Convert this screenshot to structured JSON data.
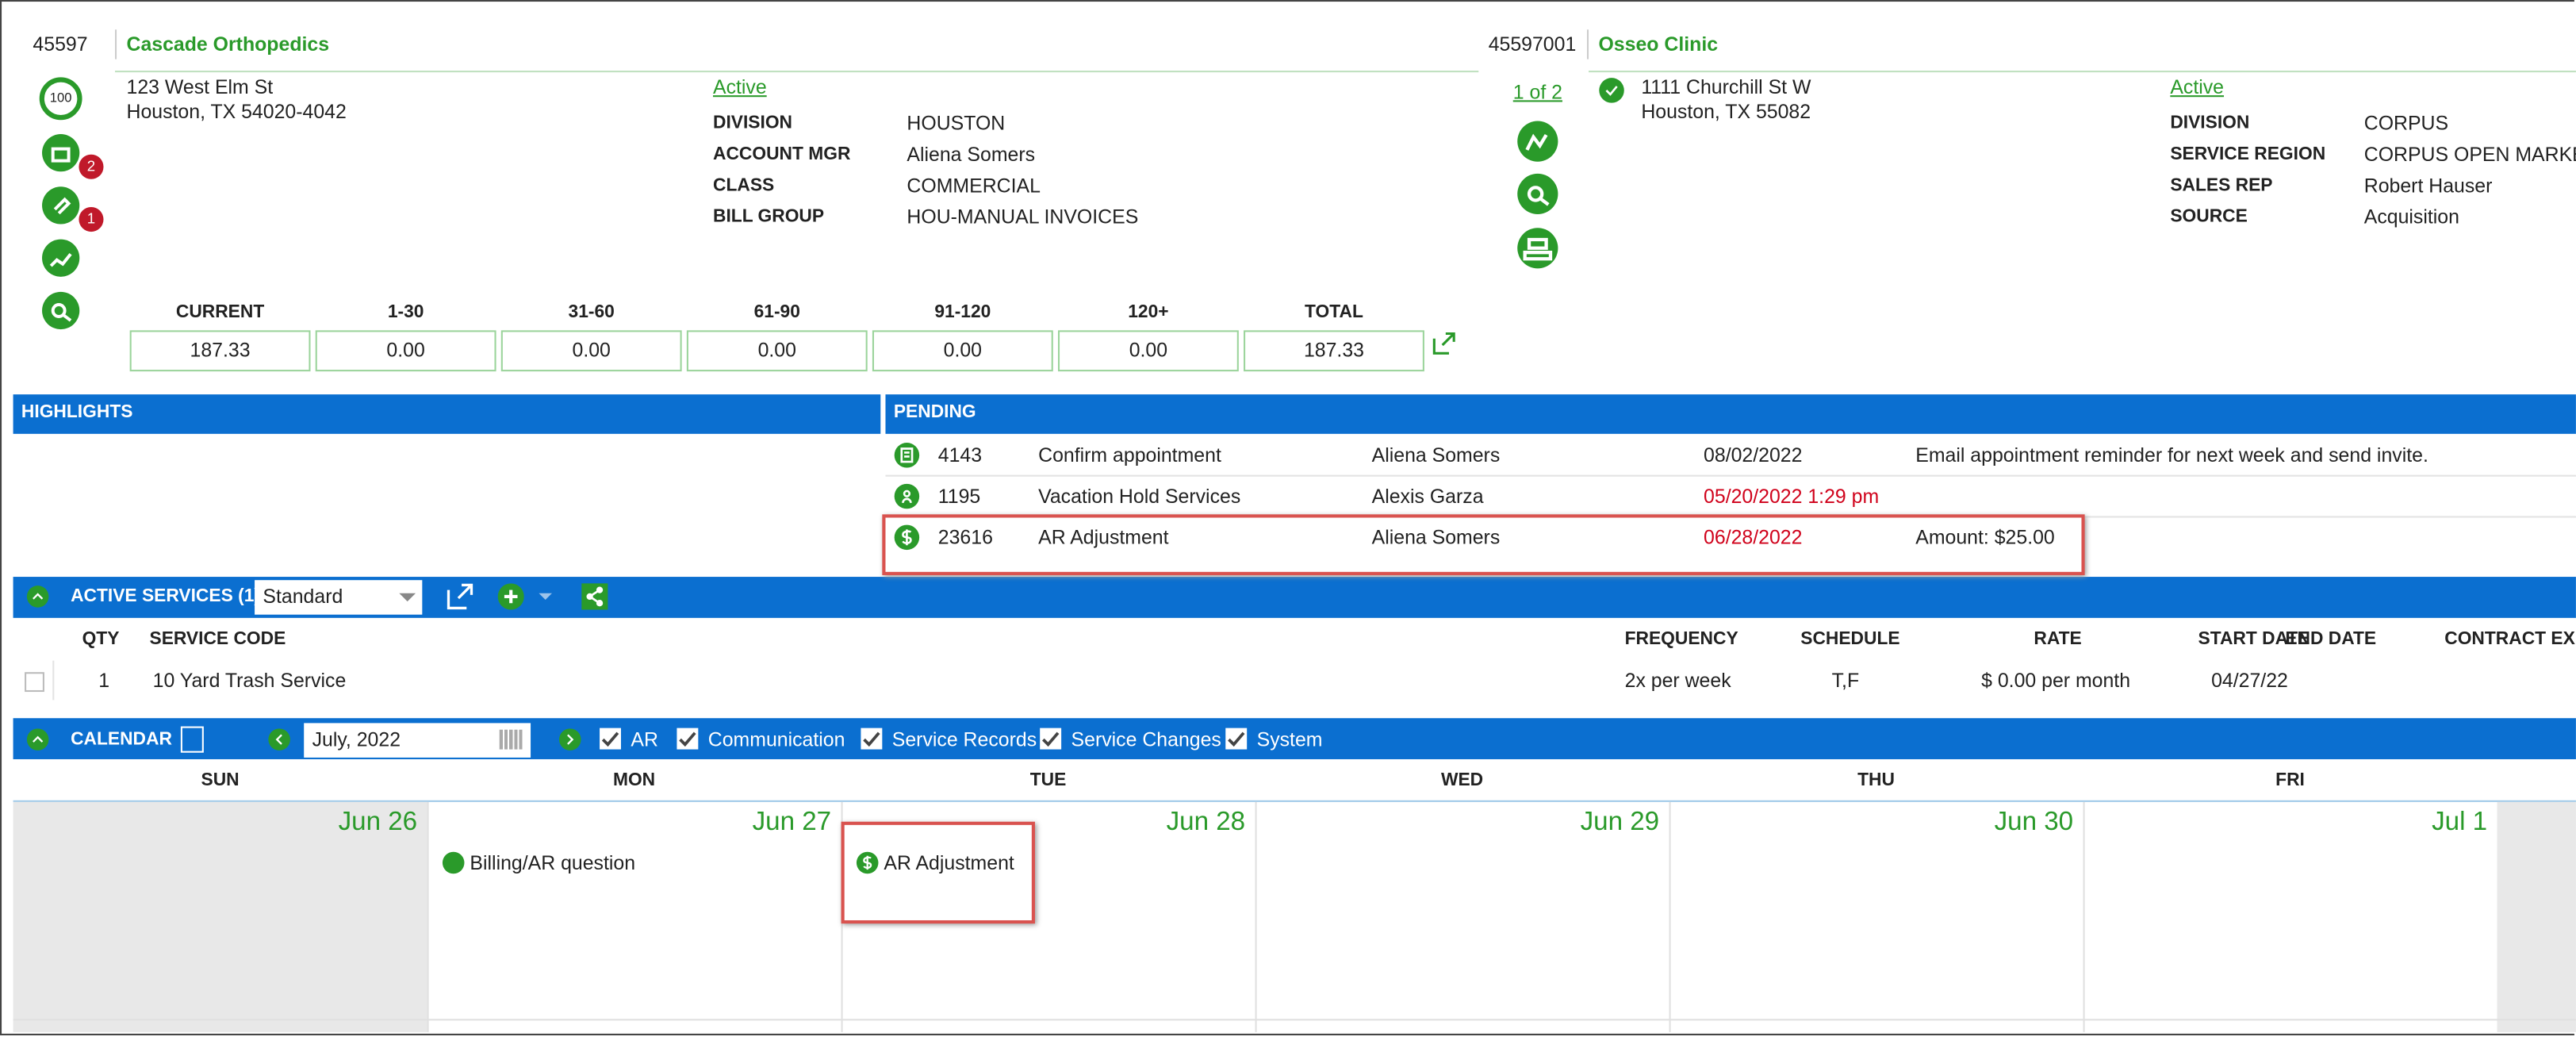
{
  "account": {
    "id": "45597",
    "name": "Cascade Orthopedics",
    "score": "100",
    "badges": [
      "2",
      "1"
    ],
    "address": [
      "123 West Elm St",
      "Houston, TX 54020-4042"
    ],
    "status": "Active",
    "fields": [
      [
        "DIVISION",
        "HOUSTON"
      ],
      [
        "ACCOUNT MGR",
        "Aliena Somers"
      ],
      [
        "CLASS",
        "COMMERCIAL"
      ],
      [
        "BILL GROUP",
        "HOU-MANUAL INVOICES"
      ]
    ]
  },
  "site": {
    "id": "45597001",
    "name": "Osseo Clinic",
    "pager": "1 of 2",
    "address": [
      "1111 Churchill St W",
      "Houston, TX 55082"
    ],
    "status": "Active",
    "fields": [
      [
        "DIVISION",
        "CORPUS"
      ],
      [
        "SERVICE REGION",
        "CORPUS OPEN MARKET"
      ],
      [
        "SALES REP",
        "Robert Hauser"
      ],
      [
        "SOURCE",
        "Acquisition"
      ]
    ]
  },
  "aging": {
    "headers": [
      "CURRENT",
      "1-30",
      "31-60",
      "61-90",
      "91-120",
      "120+",
      "TOTAL"
    ],
    "values": [
      "187.33",
      "0.00",
      "0.00",
      "0.00",
      "0.00",
      "0.00",
      "187.33"
    ]
  },
  "highlights": {
    "title": "HIGHLIGHTS"
  },
  "pending": {
    "title": "PENDING",
    "rows": [
      [
        "4143",
        "Confirm appointment",
        "Aliena Somers",
        "08/02/2022",
        "Email appointment reminder for next week and send invite."
      ],
      [
        "1195",
        "Vacation Hold Services",
        "Alexis Garza",
        "05/20/2022 1:29 pm"
      ],
      [
        "23616",
        "AR Adjustment",
        "Aliena Somers",
        "06/28/2022",
        "Amount: $25.00"
      ]
    ]
  },
  "services": {
    "title": "ACTIVE SERVICES (1)",
    "view": "Standard",
    "headers": [
      "QTY",
      "SERVICE CODE",
      "FREQUENCY",
      "SCHEDULE",
      "RATE",
      "START DATE",
      "END DATE",
      "CONTRACT EX"
    ],
    "rows": [
      {
        "qty": "1",
        "code": "10 Yard Trash Service",
        "frequency": "2x per week",
        "schedule": "T,F",
        "rate": "$ 0.00 per month",
        "start_date": "04/27/22"
      }
    ]
  },
  "calendar": {
    "title": "CALENDAR",
    "month": "July, 2022",
    "filters": [
      "AR",
      "Communication",
      "Service Records",
      "Service Changes",
      "System"
    ],
    "days": [
      "SUN",
      "MON",
      "TUE",
      "WED",
      "THU",
      "FRI"
    ],
    "cells": [
      {
        "date": "Jun 26"
      },
      {
        "date": "Jun 27",
        "events": [
          "Billing/AR question"
        ]
      },
      {
        "date": "Jun 28",
        "events": [
          "AR Adjustment"
        ]
      },
      {
        "date": "Jun 29"
      },
      {
        "date": "Jun 30"
      },
      {
        "date": "Jul 1"
      }
    ]
  }
}
